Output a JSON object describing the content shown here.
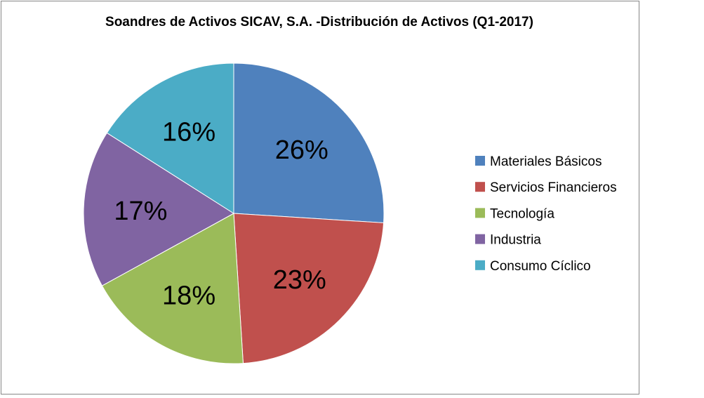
{
  "chart_data": {
    "type": "pie",
    "title": "Soandres de Activos SICAV, S.A. -Distribución de Activos (Q1-2017)",
    "categories": [
      "Materiales Básicos",
      "Servicios Financieros",
      "Tecnología",
      "Industria",
      "Consumo Cíclico"
    ],
    "values": [
      26,
      23,
      18,
      17,
      16
    ],
    "data_labels": [
      "26%",
      "23%",
      "18%",
      "17%",
      "16%"
    ],
    "colors": [
      "#4F81BD",
      "#C0504D",
      "#9BBB59",
      "#8064A2",
      "#4BACC6"
    ],
    "start_angle": "12 o'clock",
    "direction": "clockwise",
    "legend_position": "right"
  }
}
